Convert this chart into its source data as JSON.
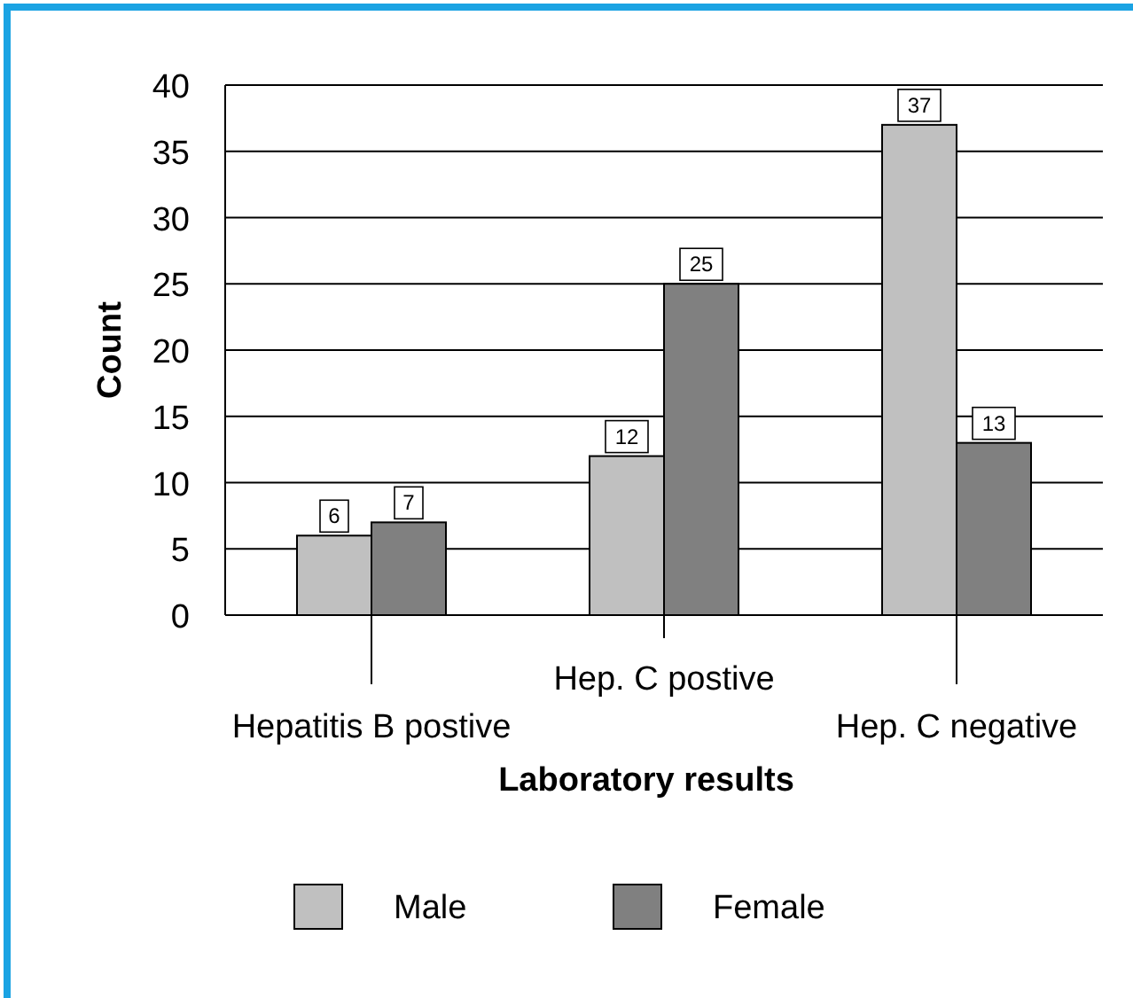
{
  "chart_data": {
    "type": "bar",
    "xlabel": "Laboratory results",
    "ylabel": "Count",
    "categories": [
      "Hepatitis B postive",
      "Hep. C postive",
      "Hep. C negative"
    ],
    "series": [
      {
        "name": "Male",
        "color": "#c0c0c0",
        "values": [
          6,
          12,
          37
        ]
      },
      {
        "name": "Female",
        "color": "#808080",
        "values": [
          7,
          25,
          13
        ]
      }
    ],
    "ylim": [
      0,
      40
    ],
    "yticks": [
      0,
      5,
      10,
      15,
      20,
      25,
      30,
      35,
      40
    ],
    "grid": "y",
    "data_labels": true,
    "legend": "bottom"
  }
}
